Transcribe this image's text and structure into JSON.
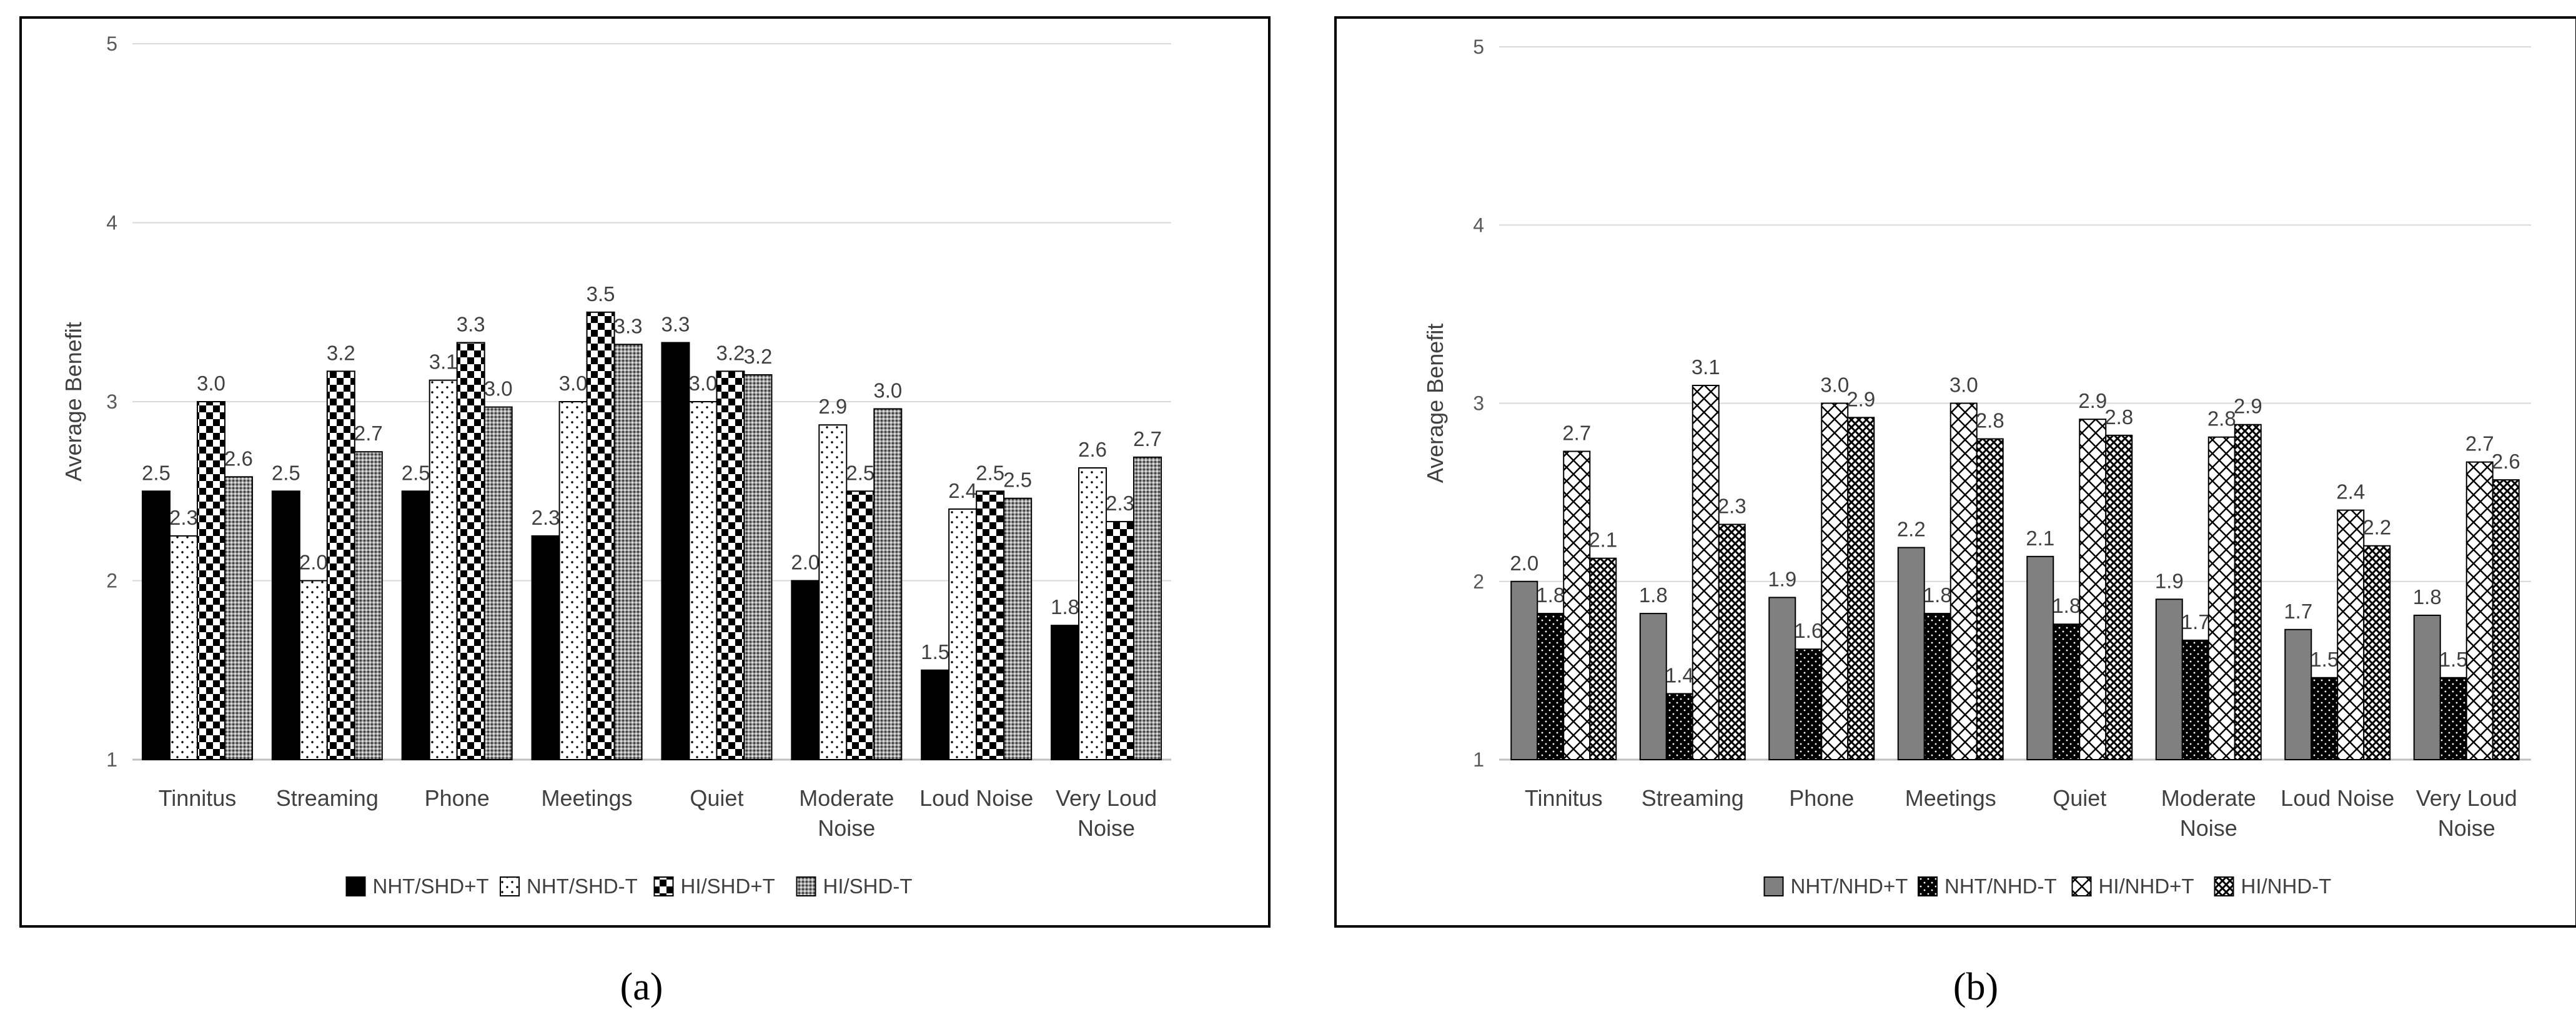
{
  "chart_data": [
    {
      "type": "bar",
      "panel_label": "a",
      "ylabel": "Average Benefit",
      "ylim": [
        1,
        5
      ],
      "yticks": [
        1,
        2,
        3,
        4,
        5
      ],
      "categories": [
        [
          "Tinnitus"
        ],
        [
          "Streaming"
        ],
        [
          "Phone"
        ],
        [
          "Meetings"
        ],
        [
          "Quiet"
        ],
        [
          "Moderate",
          "Noise"
        ],
        [
          "Loud Noise"
        ],
        [
          "Very Loud",
          "Noise"
        ]
      ],
      "legend_position": "bottom",
      "series": [
        {
          "name": "NHT/SHD+T",
          "pattern": "solid-black",
          "values": [
            2.5,
            2.5,
            2.5,
            2.25,
            3.33,
            2.0,
            1.5,
            1.75
          ],
          "labels": [
            "2.5",
            "2.5",
            "2.5",
            "2.3",
            "3.3",
            "2.0",
            "1.5",
            "1.8"
          ]
        },
        {
          "name": "NHT/SHD-T",
          "pattern": "dots-white",
          "values": [
            2.25,
            2.0,
            3.12,
            3.0,
            3.0,
            2.87,
            2.4,
            2.63
          ],
          "labels": [
            "2.3",
            "2.0",
            "3.1",
            "3.0",
            "3.0",
            "2.9",
            "2.4",
            "2.6"
          ]
        },
        {
          "name": "HI/SHD+T",
          "pattern": "checker",
          "values": [
            3.0,
            3.17,
            3.33,
            3.5,
            3.17,
            2.5,
            2.5,
            2.33
          ],
          "labels": [
            "3.0",
            "3.2",
            "3.3",
            "3.5",
            "3.2",
            "2.5",
            "2.5",
            "2.3"
          ]
        },
        {
          "name": "HI/SHD-T",
          "pattern": "fine-dots-gray",
          "values": [
            2.58,
            2.72,
            2.97,
            3.32,
            3.15,
            2.96,
            2.46,
            2.69
          ],
          "labels": [
            "2.6",
            "2.7",
            "3.0",
            "3.3",
            "3.2",
            "3.0",
            "2.5",
            "2.7"
          ]
        }
      ]
    },
    {
      "type": "bar",
      "panel_label": "b",
      "ylabel": "Average Benefit",
      "ylim": [
        1,
        5
      ],
      "yticks": [
        1,
        2,
        3,
        4,
        5
      ],
      "categories": [
        [
          "Tinnitus"
        ],
        [
          "Streaming"
        ],
        [
          "Phone"
        ],
        [
          "Meetings"
        ],
        [
          "Quiet"
        ],
        [
          "Moderate",
          "Noise"
        ],
        [
          "Loud Noise"
        ],
        [
          "Very Loud",
          "Noise"
        ]
      ],
      "legend_position": "bottom",
      "series": [
        {
          "name": "NHT/NHD+T",
          "pattern": "solid-gray",
          "values": [
            2.0,
            1.82,
            1.91,
            2.19,
            2.14,
            1.9,
            1.73,
            1.81
          ],
          "labels": [
            "2.0",
            "1.8",
            "1.9",
            "2.2",
            "2.1",
            "1.9",
            "1.7",
            "1.8"
          ]
        },
        {
          "name": "NHT/NHD-T",
          "pattern": "dots-black",
          "values": [
            1.82,
            1.37,
            1.62,
            1.82,
            1.76,
            1.67,
            1.46,
            1.46
          ],
          "labels": [
            "1.8",
            "1.4",
            "1.6",
            "1.8",
            "1.8",
            "1.7",
            "1.5",
            "1.5"
          ]
        },
        {
          "name": "HI/NHD+T",
          "pattern": "crosshatch-white",
          "values": [
            2.73,
            3.1,
            3.0,
            3.0,
            2.91,
            2.81,
            2.4,
            2.67
          ],
          "labels": [
            "2.7",
            "3.1",
            "3.0",
            "3.0",
            "2.9",
            "2.8",
            "2.4",
            "2.7"
          ]
        },
        {
          "name": "HI/NHD-T",
          "pattern": "weave",
          "values": [
            2.13,
            2.32,
            2.92,
            2.8,
            2.82,
            2.88,
            2.2,
            2.57
          ],
          "labels": [
            "2.1",
            "2.3",
            "2.9",
            "2.8",
            "2.8",
            "2.9",
            "2.2",
            "2.6"
          ]
        }
      ]
    }
  ]
}
